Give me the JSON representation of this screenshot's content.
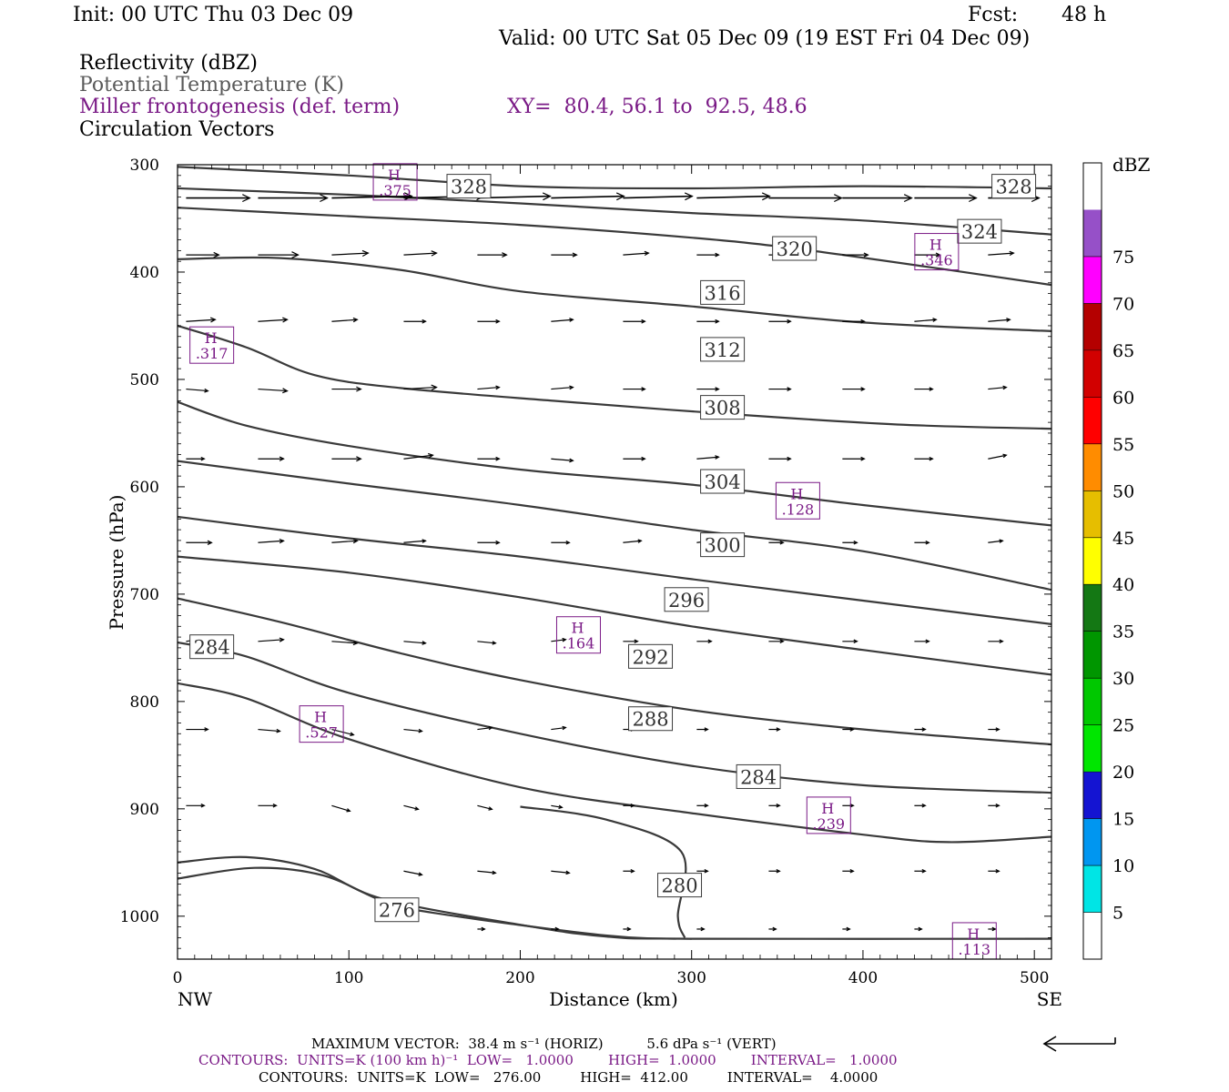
{
  "header": {
    "init": "Init: 00 UTC Thu 03 Dec 09",
    "fcst_label": "Fcst:",
    "fcst_value": "48 h",
    "valid": "Valid: 00 UTC Sat 05 Dec 09 (19 EST Fri 04 Dec 09)",
    "fields": [
      {
        "text": "Reflectivity (dBZ)",
        "color": "#000000"
      },
      {
        "text": "Potential Temperature (K)",
        "color": "#5a5a5a"
      },
      {
        "text": "Miller frontogenesis (def. term)",
        "color": "#7a1a86"
      },
      {
        "text": "Circulation Vectors",
        "color": "#000000"
      }
    ],
    "xy": "XY=  80.4, 56.1 to  92.5, 48.6"
  },
  "footer": {
    "max_vector": "MAXIMUM VECTOR:  38.4 m s⁻¹ (HORIZ)          5.6 dPa s⁻¹ (VERT)",
    "contours_fronto": "CONTOURS:  UNITS=K (100 km h)⁻¹  LOW=   1.0000        HIGH=  1.0000        INTERVAL=   1.0000",
    "contours_theta": "CONTOURS:  UNITS=K  LOW=   276.00         HIGH=  412.00         INTERVAL=    4.0000"
  },
  "chart_data": {
    "type": "line",
    "title": "",
    "xlabel": "Distance (km)",
    "ylabel": "Pressure (hPa)",
    "xlim": [
      0,
      510
    ],
    "ylim": [
      1040,
      300
    ],
    "x_ticks": [
      0,
      100,
      200,
      300,
      400,
      500
    ],
    "y_ticks": [
      300,
      400,
      500,
      600,
      700,
      800,
      900,
      1000
    ],
    "x_end_labels": {
      "left": "NW",
      "right": "SE"
    },
    "colorbar": {
      "unit": "dBZ",
      "levels": [
        5,
        10,
        15,
        20,
        25,
        30,
        35,
        40,
        45,
        50,
        55,
        60,
        65,
        70,
        75
      ],
      "colors": [
        "#ffffff",
        "#00e5e5",
        "#0096f0",
        "#1414d2",
        "#00e600",
        "#00c800",
        "#009600",
        "#147814",
        "#ffff00",
        "#e6be00",
        "#ff8c00",
        "#ff0000",
        "#d20000",
        "#b40000",
        "#ff00ff",
        "#9650c8",
        "#ffffff"
      ]
    },
    "theta_contours": [
      {
        "value": "328",
        "points": [
          [
            0,
            302
          ],
          [
            100,
            310
          ],
          [
            200,
            320
          ],
          [
            300,
            322
          ],
          [
            400,
            320
          ],
          [
            510,
            322
          ]
        ],
        "labels": [
          [
            170,
            320
          ],
          [
            488,
            320
          ]
        ]
      },
      {
        "value": "324",
        "points": [
          [
            0,
            322
          ],
          [
            100,
            328
          ],
          [
            200,
            336
          ],
          [
            300,
            345
          ],
          [
            400,
            352
          ],
          [
            510,
            365
          ]
        ],
        "labels": [
          [
            468,
            362
          ]
        ]
      },
      {
        "value": "320",
        "points": [
          [
            0,
            340
          ],
          [
            100,
            348
          ],
          [
            200,
            356
          ],
          [
            300,
            368
          ],
          [
            360,
            378
          ],
          [
            450,
            398
          ],
          [
            510,
            412
          ]
        ],
        "labels": [
          [
            360,
            378
          ]
        ]
      },
      {
        "value": "316",
        "points": [
          [
            0,
            388
          ],
          [
            60,
            387
          ],
          [
            130,
            398
          ],
          [
            200,
            418
          ],
          [
            300,
            432
          ],
          [
            400,
            447
          ],
          [
            510,
            455
          ]
        ],
        "labels": [
          [
            318,
            419
          ]
        ]
      },
      {
        "value": "312",
        "points": [
          [
            0,
            450
          ],
          [
            40,
            470
          ],
          [
            80,
            496
          ],
          [
            130,
            508
          ],
          [
            220,
            520
          ],
          [
            320,
            532
          ],
          [
            420,
            542
          ],
          [
            510,
            546
          ]
        ],
        "labels": [
          [
            318,
            472
          ]
        ]
      },
      {
        "value": "308",
        "points": [
          [
            0,
            521
          ],
          [
            40,
            543
          ],
          [
            100,
            562
          ],
          [
            200,
            584
          ],
          [
            300,
            598
          ],
          [
            400,
            617
          ],
          [
            510,
            636
          ]
        ],
        "labels": [
          [
            318,
            526
          ]
        ]
      },
      {
        "value": "304",
        "points": [
          [
            0,
            576
          ],
          [
            100,
            597
          ],
          [
            200,
            617
          ],
          [
            300,
            640
          ],
          [
            400,
            660
          ],
          [
            510,
            696
          ]
        ],
        "labels": [
          [
            318,
            595
          ]
        ]
      },
      {
        "value": "300",
        "points": [
          [
            0,
            628
          ],
          [
            100,
            648
          ],
          [
            200,
            665
          ],
          [
            300,
            686
          ],
          [
            400,
            706
          ],
          [
            510,
            728
          ]
        ],
        "labels": [
          [
            318,
            654
          ]
        ]
      },
      {
        "value": "296",
        "points": [
          [
            0,
            665
          ],
          [
            100,
            680
          ],
          [
            200,
            703
          ],
          [
            300,
            730
          ],
          [
            400,
            752
          ],
          [
            510,
            775
          ]
        ],
        "labels": [
          [
            297,
            705
          ]
        ]
      },
      {
        "value": "292",
        "points": [
          [
            0,
            704
          ],
          [
            60,
            726
          ],
          [
            130,
            755
          ],
          [
            200,
            780
          ],
          [
            300,
            808
          ],
          [
            400,
            826
          ],
          [
            510,
            840
          ]
        ],
        "labels": [
          [
            276,
            758
          ]
        ]
      },
      {
        "value": "288",
        "points": [
          [
            0,
            745
          ],
          [
            40,
            758
          ],
          [
            100,
            792
          ],
          [
            200,
            830
          ],
          [
            300,
            860
          ],
          [
            400,
            878
          ],
          [
            510,
            885
          ]
        ],
        "labels": [
          [
            276,
            816
          ]
        ]
      },
      {
        "value": "284",
        "points": [
          [
            0,
            783
          ],
          [
            40,
            797
          ],
          [
            100,
            835
          ],
          [
            200,
            880
          ],
          [
            300,
            904
          ],
          [
            400,
            924
          ],
          [
            450,
            931
          ],
          [
            510,
            926
          ]
        ],
        "labels": [
          [
            20,
            749
          ],
          [
            339,
            870
          ]
        ]
      },
      {
        "value": "280",
        "points": [
          [
            0,
            950
          ],
          [
            40,
            945
          ],
          [
            80,
            956
          ],
          [
            120,
            984
          ],
          [
            200,
            1008
          ],
          [
            250,
            1019
          ],
          [
            300,
            1021
          ],
          [
            510,
            1021
          ]
        ],
        "labels": [
          [
            293,
            971
          ]
        ]
      },
      {
        "value": "280",
        "points": [
          [
            200,
            898
          ],
          [
            250,
            910
          ],
          [
            294,
            940
          ],
          [
            292,
            1000
          ],
          [
            296,
            1020
          ]
        ],
        "labels": []
      },
      {
        "value": "276",
        "points": [
          [
            0,
            965
          ],
          [
            45,
            955
          ],
          [
            85,
            962
          ],
          [
            120,
            986
          ],
          [
            150,
            997
          ],
          [
            250,
            1018
          ],
          [
            300,
            1021
          ]
        ],
        "labels": [
          [
            128,
            994
          ]
        ]
      }
    ],
    "frontogenesis_maxima": [
      {
        "label": "H",
        "value": ".375",
        "x": 127,
        "y": 316
      },
      {
        "label": "H",
        "value": ".346",
        "x": 443,
        "y": 381
      },
      {
        "label": "H",
        "value": ".317",
        "x": 20,
        "y": 468
      },
      {
        "label": "H",
        "value": ".128",
        "x": 362,
        "y": 613
      },
      {
        "label": "H",
        "value": ".164",
        "x": 234,
        "y": 738
      },
      {
        "label": "H",
        "value": ".527",
        "x": 84,
        "y": 821
      },
      {
        "label": "H",
        "value": ".239",
        "x": 380,
        "y": 906
      },
      {
        "label": "H",
        "value": ".113",
        "x": 465,
        "y": 1023
      }
    ],
    "vectors": {
      "x": [
        5,
        47,
        90,
        132,
        175,
        218,
        260,
        303,
        345,
        388,
        430,
        473
      ],
      "rows": [
        {
          "p": 331,
          "u": [
            35,
            38,
            44,
            44,
            40,
            40,
            38,
            40,
            40,
            38,
            34,
            28
          ],
          "w": [
            0,
            0,
            -1,
            -1,
            -1,
            -1,
            -1,
            -1,
            0,
            0,
            0,
            0
          ]
        },
        {
          "p": 384,
          "u": [
            18,
            22,
            20,
            18,
            16,
            14,
            14,
            12,
            14,
            14,
            14,
            14
          ],
          "w": [
            0,
            0,
            -1,
            -1,
            0,
            0,
            -1,
            0,
            0,
            0,
            0,
            -1
          ]
        },
        {
          "p": 446,
          "u": [
            16,
            16,
            14,
            12,
            12,
            12,
            12,
            12,
            12,
            12,
            12,
            12
          ],
          "w": [
            -1,
            -1,
            -1,
            0,
            0,
            -1,
            0,
            0,
            0,
            0,
            -1,
            -1
          ]
        },
        {
          "p": 509,
          "u": [
            12,
            16,
            16,
            18,
            12,
            12,
            12,
            12,
            12,
            12,
            10,
            10
          ],
          "w": [
            1,
            1,
            0,
            -1,
            -1,
            -1,
            0,
            0,
            0,
            0,
            0,
            -1
          ]
        },
        {
          "p": 574,
          "u": [
            10,
            14,
            16,
            16,
            12,
            12,
            12,
            12,
            12,
            12,
            10,
            10
          ],
          "w": [
            0,
            0,
            0,
            -2,
            0,
            1,
            0,
            -1,
            0,
            0,
            0,
            -2
          ]
        },
        {
          "p": 652,
          "u": [
            14,
            14,
            14,
            12,
            12,
            10,
            10,
            8,
            8,
            8,
            8,
            8
          ],
          "w": [
            0,
            -1,
            -1,
            -1,
            0,
            0,
            -1,
            -1,
            0,
            0,
            0,
            -1
          ]
        },
        {
          "p": 744,
          "u": [
            12,
            14,
            14,
            12,
            10,
            8,
            8,
            8,
            8,
            8,
            8,
            8
          ],
          "w": [
            -2,
            -1,
            1,
            1,
            1,
            -1,
            0,
            0,
            0,
            0,
            0,
            0
          ]
        },
        {
          "p": 826,
          "u": [
            12,
            12,
            12,
            10,
            8,
            8,
            6,
            6,
            6,
            6,
            6,
            6
          ],
          "w": [
            0,
            1,
            3,
            1,
            -1,
            -1,
            0,
            0,
            0,
            0,
            0,
            0
          ]
        },
        {
          "p": 897,
          "u": [
            10,
            10,
            10,
            8,
            8,
            6,
            6,
            6,
            6,
            6,
            6,
            6
          ],
          "w": [
            0,
            0,
            3,
            2,
            2,
            1,
            0,
            0,
            0,
            0,
            0,
            0
          ]
        },
        {
          "p": 958,
          "u": [
            0,
            0,
            0,
            10,
            10,
            10,
            6,
            6,
            6,
            6,
            6,
            6
          ],
          "w": [
            0,
            0,
            0,
            2,
            1,
            1,
            0,
            0,
            0,
            0,
            0,
            0
          ]
        },
        {
          "p": 1012,
          "u": [
            0,
            0,
            0,
            0,
            4,
            4,
            4,
            4,
            4,
            4,
            4,
            4
          ],
          "w": [
            0,
            0,
            0,
            0,
            0,
            0,
            0,
            0,
            0,
            0,
            0,
            0
          ]
        }
      ]
    },
    "reference_vector": "38.4 m s⁻¹"
  }
}
